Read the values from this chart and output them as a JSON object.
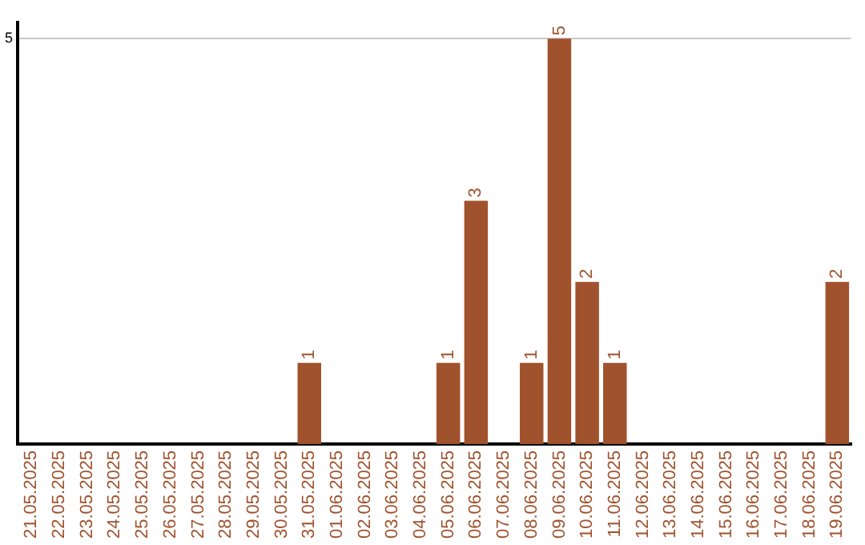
{
  "chart_data": {
    "type": "bar",
    "categories": [
      "21.05.2025",
      "22.05.2025",
      "23.05.2025",
      "24.05.2025",
      "25.05.2025",
      "26.05.2025",
      "27.05.2025",
      "28.05.2025",
      "29.05.2025",
      "30.05.2025",
      "31.05.2025",
      "01.06.2025",
      "02.06.2025",
      "03.06.2025",
      "04.06.2025",
      "05.06.2025",
      "06.06.2025",
      "07.06.2025",
      "08.06.2025",
      "09.06.2025",
      "10.06.2025",
      "11.06.2025",
      "12.06.2025",
      "13.06.2025",
      "14.06.2025",
      "15.06.2025",
      "16.06.2025",
      "17.06.2025",
      "18.06.2025",
      "19.06.2025"
    ],
    "values": [
      0,
      0,
      0,
      0,
      0,
      0,
      0,
      0,
      0,
      0,
      1,
      0,
      0,
      0,
      0,
      1,
      3,
      0,
      1,
      5,
      2,
      1,
      0,
      0,
      0,
      0,
      0,
      0,
      0,
      2
    ],
    "value_labels": [
      null,
      null,
      null,
      null,
      null,
      null,
      null,
      null,
      null,
      null,
      "1",
      null,
      null,
      null,
      null,
      "1",
      "3",
      null,
      "1",
      "5",
      "2",
      "1",
      null,
      null,
      null,
      null,
      null,
      null,
      null,
      "2"
    ],
    "color": "#a0522d",
    "ylim": [
      0,
      5.2
    ],
    "yticks": [
      5
    ],
    "grid": "y",
    "legend": false
  }
}
